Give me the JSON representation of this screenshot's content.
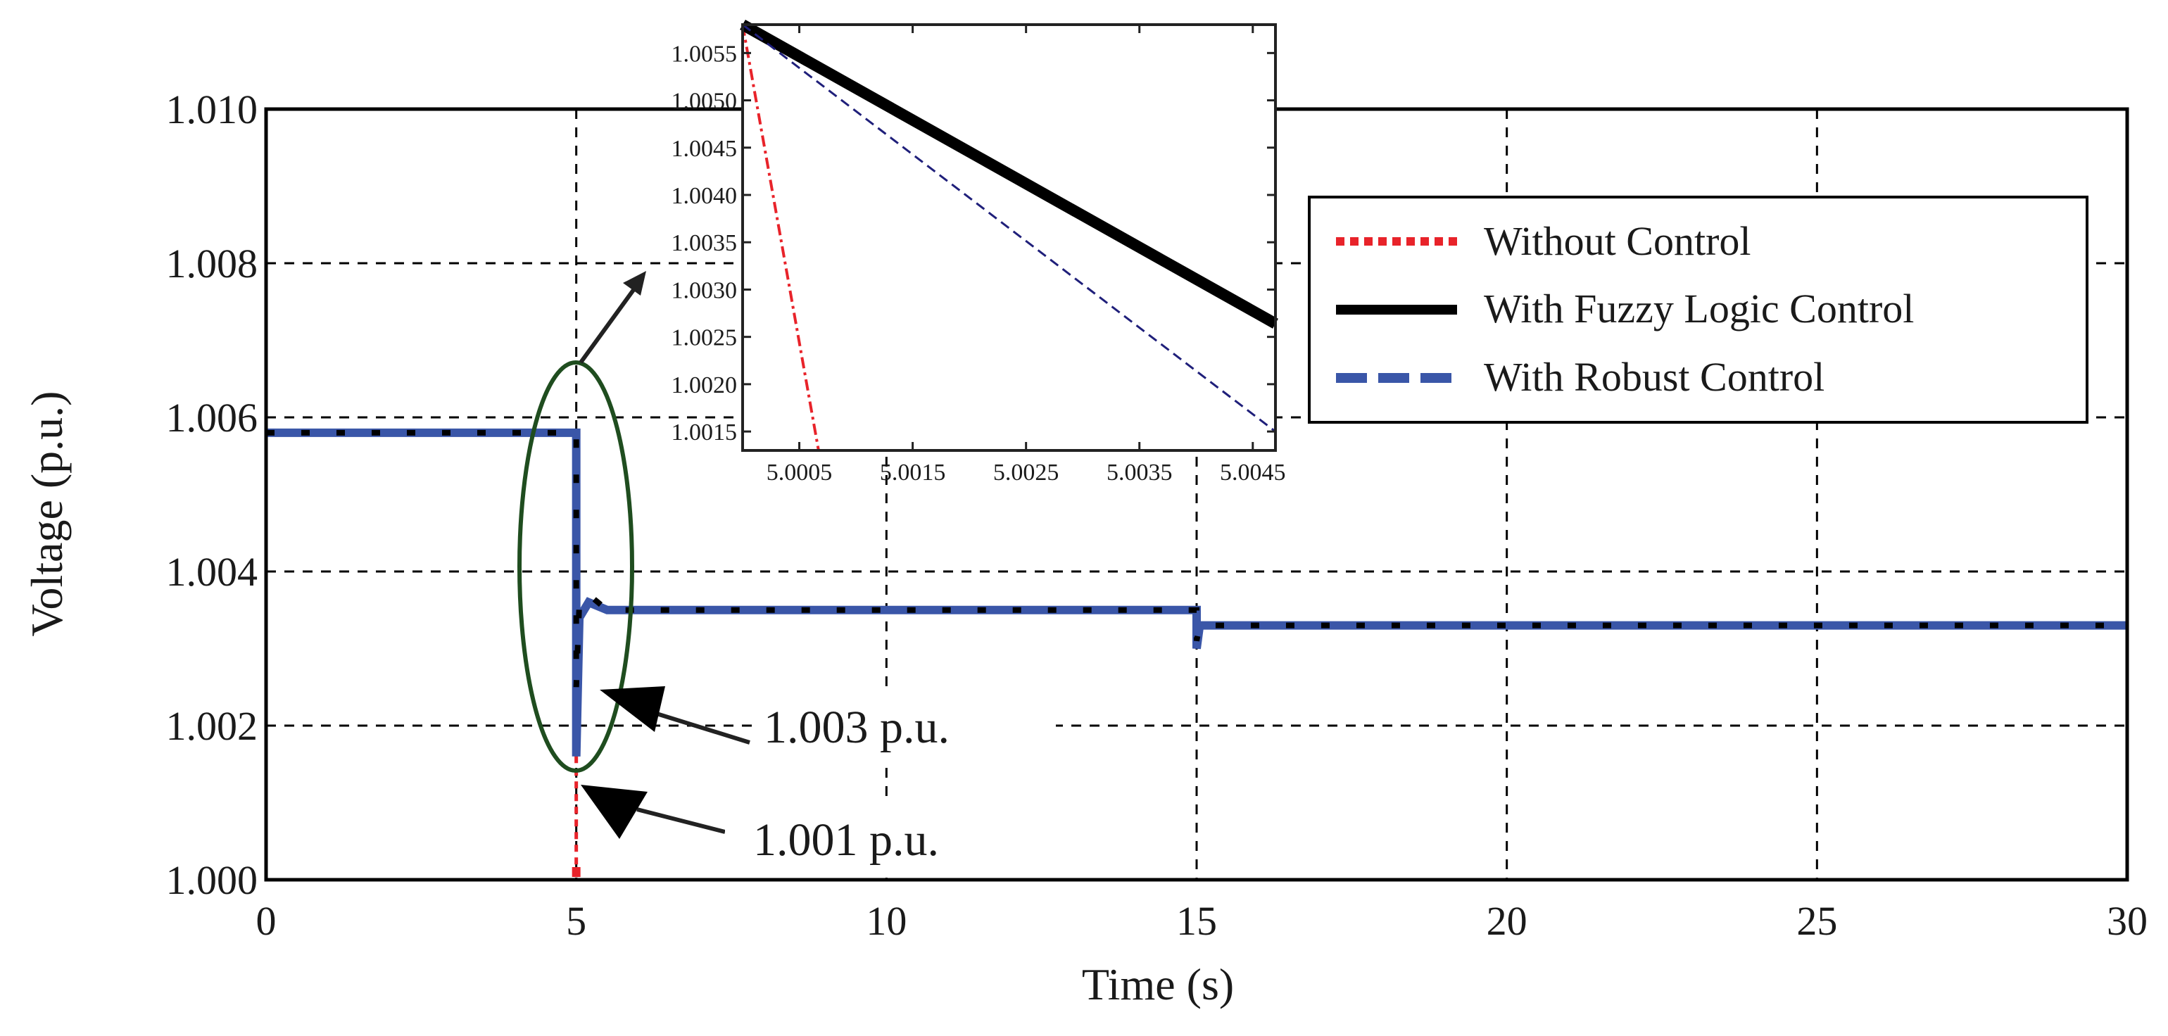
{
  "chart_data": {
    "type": "line",
    "xlabel": "Time (s)",
    "ylabel": "Voltage (p.u.)",
    "xlim": [
      0,
      30
    ],
    "ylim": [
      1.0,
      1.01
    ],
    "x_ticks": [
      "0",
      "5",
      "10",
      "15",
      "20",
      "25",
      "30"
    ],
    "y_ticks": [
      "1.000",
      "1.002",
      "1.004",
      "1.006",
      "1.008",
      "1.010"
    ],
    "grid": true,
    "legend_position": "top-right",
    "series": [
      {
        "name": "Without Control",
        "color": "#e8232a",
        "style": "dotted",
        "x": [
          0,
          5.0,
          5.0,
          5.0,
          5.0
        ],
        "y": [
          1.0058,
          1.0058,
          1.004,
          1.002,
          1.0
        ]
      },
      {
        "name": "With Fuzzy Logic Control",
        "color": "#000000",
        "style": "solid",
        "x": [
          0,
          5.0,
          5.0,
          5.05,
          5.2,
          5.5,
          15.0,
          15.0,
          15.05,
          30
        ],
        "y": [
          1.0058,
          1.0058,
          1.0025,
          1.0036,
          1.0037,
          1.0035,
          1.0035,
          1.0031,
          1.0033,
          1.0033
        ]
      },
      {
        "name": "With Robust Control",
        "color": "#3a56a8",
        "style": "dashed",
        "x": [
          0,
          5.0,
          5.0,
          5.05,
          5.2,
          5.5,
          15.0,
          15.0,
          15.05,
          30
        ],
        "y": [
          1.0058,
          1.0058,
          1.0016,
          1.0034,
          1.0036,
          1.0035,
          1.0035,
          1.003,
          1.0033,
          1.0033
        ]
      }
    ],
    "annotations": [
      {
        "text": "1.003 p.u.",
        "x": 5.0,
        "y": 1.003
      },
      {
        "text": "1.001 p.u.",
        "x": 5.0,
        "y": 1.001
      }
    ],
    "inset": {
      "xlim": [
        5.0,
        5.0047
      ],
      "ylim": [
        1.0013,
        1.0058
      ],
      "x_ticks": [
        "5.0005",
        "5.0015",
        "5.0025",
        "5.0035",
        "5.0045"
      ],
      "x_tick_values": [
        5.0005,
        5.0015,
        5.0025,
        5.0035,
        5.0045
      ],
      "y_ticks": [
        "1.0015",
        "1.0020",
        "1.0025",
        "1.0030",
        "1.0035",
        "1.0040",
        "1.0045",
        "1.0050",
        "1.0055"
      ],
      "y_tick_values": [
        1.0015,
        1.002,
        1.0025,
        1.003,
        1.0035,
        1.004,
        1.0045,
        1.005,
        1.0055
      ],
      "series": [
        {
          "name": "Without Control",
          "color": "#e8232a",
          "style": "dashdot",
          "x": [
            5.0,
            5.00067
          ],
          "y": [
            1.0058,
            1.0013
          ]
        },
        {
          "name": "With Fuzzy Logic Control",
          "color": "#000000",
          "style": "solid",
          "x": [
            5.0,
            5.0047
          ],
          "y": [
            1.0058,
            1.00264
          ]
        },
        {
          "name": "With Robust Control",
          "color": "#1f1f7a",
          "style": "dashed",
          "x": [
            5.0,
            5.0047
          ],
          "y": [
            1.0058,
            1.0015
          ]
        }
      ]
    }
  }
}
